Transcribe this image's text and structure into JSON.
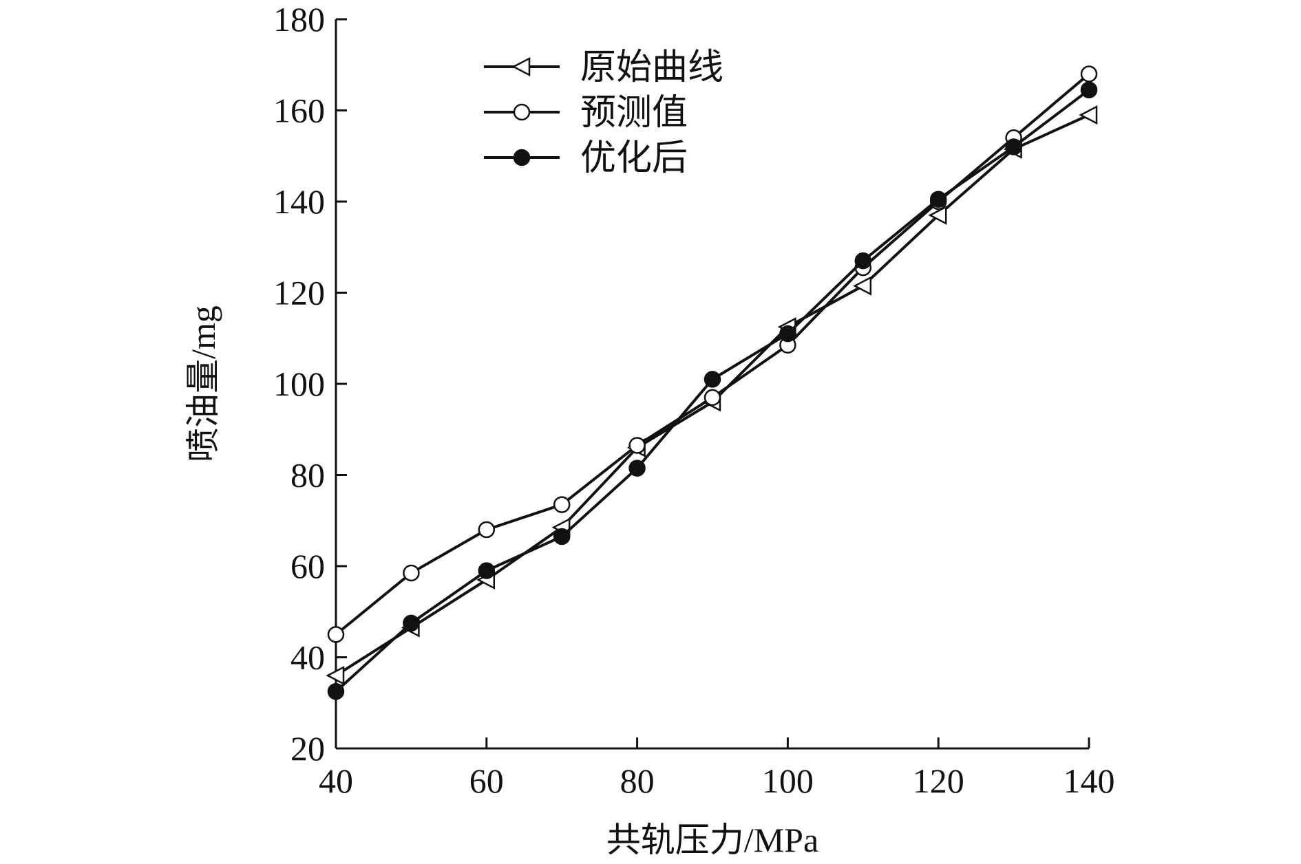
{
  "chart_data": {
    "type": "line",
    "title": "",
    "xlabel": "共轨压力/MPa",
    "ylabel": "喷油量/mg",
    "xlim": [
      40,
      140
    ],
    "ylim": [
      20,
      180
    ],
    "xticks": [
      40,
      60,
      80,
      100,
      120,
      140
    ],
    "yticks": [
      20,
      40,
      60,
      80,
      100,
      120,
      140,
      160,
      180
    ],
    "grid": false,
    "legend_position": "top-left",
    "x": [
      40,
      50,
      60,
      70,
      80,
      90,
      100,
      110,
      120,
      130,
      140
    ],
    "series": [
      {
        "name": "原始曲线",
        "marker": "triangle-left-open",
        "values": [
          36,
          46.5,
          57,
          68.5,
          86,
          96,
          112.5,
          121.5,
          137,
          151.5,
          159
        ]
      },
      {
        "name": "预测值",
        "marker": "circle-open",
        "values": [
          45,
          58.5,
          68,
          73.5,
          86.5,
          97,
          108.5,
          125.5,
          140,
          154,
          168
        ]
      },
      {
        "name": "优化后",
        "marker": "circle-filled",
        "values": [
          32.5,
          47.5,
          59,
          66.5,
          81.5,
          101,
          111,
          127,
          140.5,
          152,
          164.5
        ]
      }
    ],
    "colors": {
      "line": "#111111",
      "marker_fill_open": "#ffffff",
      "marker_fill_filled": "#111111"
    }
  }
}
